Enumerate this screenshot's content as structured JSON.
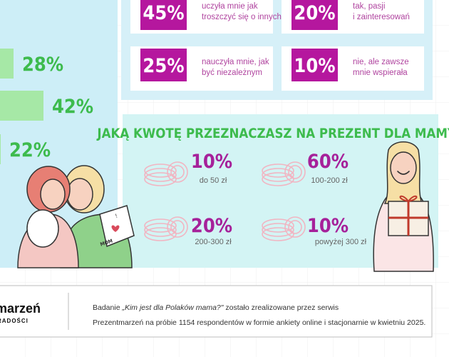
{
  "bars": {
    "values": [
      28,
      42,
      22
    ],
    "value_labels": [
      "28%",
      "42%",
      "22%"
    ]
  },
  "cards": [
    {
      "percent": "45%",
      "lines": [
        "uczyła mnie jak",
        "troszczyć się o innych"
      ]
    },
    {
      "percent": "20%",
      "lines": [
        "tak, pasji",
        "i zainteresowań"
      ]
    },
    {
      "percent": "25%",
      "lines": [
        "nauczyła mnie, jak",
        "być niezależnym"
      ]
    },
    {
      "percent": "10%",
      "lines": [
        "nie, ale zawsze",
        "mnie wspierała"
      ]
    }
  ],
  "amount": {
    "title": "JAKĄ KWOTĘ PRZEZNACZASZ NA PREZENT DLA MAMY?",
    "items": [
      {
        "percent": "10%",
        "range": "do 50 zł"
      },
      {
        "percent": "60%",
        "range": "100-200 zł"
      },
      {
        "percent": "20%",
        "range": "200-300 zł"
      },
      {
        "percent": "10%",
        "range": "powyżej 300 zł"
      }
    ]
  },
  "illustration": {
    "card_text": "MOM"
  },
  "footer": {
    "logo": "marzeń",
    "logo_sub": "RADOŚCI",
    "line1_before": "Badanie ",
    "line1_title": "„Kim jest dla Polaków mama?\"",
    "line1_after": " zostało zrealizowane przez serwis",
    "line2": "Prezentmarzeń na próbie 1154 respondentów w formie ankiety online i stacjonarnie w kwietniu 2025."
  }
}
